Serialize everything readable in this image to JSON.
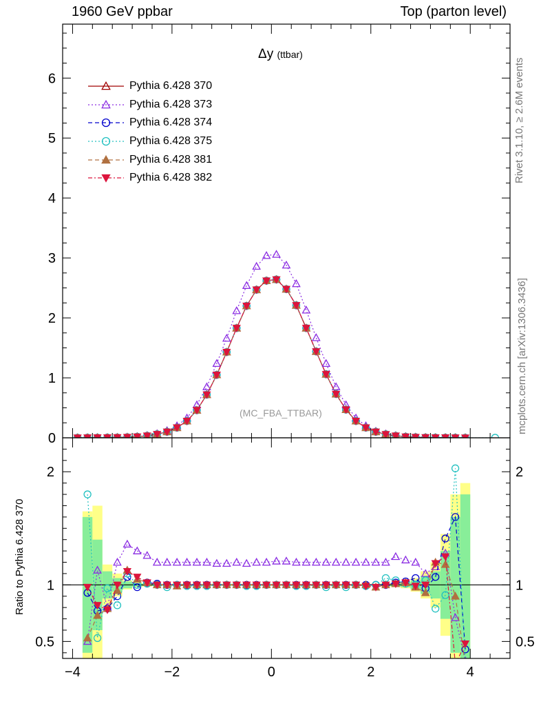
{
  "header": {
    "left": "1960 GeV ppbar",
    "right": "Top (parton level)"
  },
  "side": {
    "rivet": "Rivet 3.1.10, ≥ 2.6M events",
    "mcplots": "mcplots.cern.ch [arXiv:1306.3436]"
  },
  "chart_data": {
    "type": "line",
    "title_main": "Δy",
    "title_sub": "(ttbar)",
    "analysis_label": "(MC_FBA_TTBAR)",
    "xlabel": "",
    "main": {
      "ylabel": "",
      "xlim": [
        -4.2,
        4.8
      ],
      "ylim": [
        0,
        6.9
      ],
      "yticks": [
        0,
        1,
        2,
        3,
        4,
        5,
        6
      ],
      "x": [
        -3.9,
        -3.7,
        -3.5,
        -3.3,
        -3.1,
        -2.9,
        -2.7,
        -2.5,
        -2.3,
        -2.1,
        -1.9,
        -1.7,
        -1.5,
        -1.3,
        -1.1,
        -0.9,
        -0.7,
        -0.5,
        -0.3,
        -0.1,
        0.1,
        0.3,
        0.5,
        0.7,
        0.9,
        1.1,
        1.3,
        1.5,
        1.7,
        1.9,
        2.1,
        2.3,
        2.5,
        2.7,
        2.9,
        3.1,
        3.3,
        3.5,
        3.7,
        3.9,
        4.5
      ],
      "series": [
        {
          "name": "Pythia 6.428 370",
          "color": "#a00000",
          "dash": "",
          "marker": "triangle-open",
          "values": [
            0.001,
            0.002,
            0.003,
            0.004,
            0.006,
            0.01,
            0.018,
            0.034,
            0.06,
            0.1,
            0.17,
            0.28,
            0.46,
            0.72,
            1.05,
            1.43,
            1.83,
            2.2,
            2.47,
            2.62,
            2.64,
            2.48,
            2.21,
            1.83,
            1.44,
            1.06,
            0.73,
            0.47,
            0.28,
            0.17,
            0.1,
            0.058,
            0.033,
            0.018,
            0.01,
            0.006,
            0.004,
            0.003,
            0.002,
            0.001,
            null
          ]
        },
        {
          "name": "Pythia 6.428 373",
          "color": "#8a2be2",
          "dash": "2,3",
          "marker": "triangle-open",
          "values": [
            0.001,
            0.002,
            0.003,
            0.005,
            0.007,
            0.012,
            0.021,
            0.04,
            0.07,
            0.12,
            0.2,
            0.33,
            0.55,
            0.85,
            1.24,
            1.66,
            2.12,
            2.54,
            2.86,
            3.04,
            3.06,
            2.88,
            2.57,
            2.13,
            1.67,
            1.24,
            0.85,
            0.55,
            0.33,
            0.2,
            0.11,
            0.066,
            0.038,
            0.021,
            0.012,
            0.007,
            0.004,
            0.003,
            0.002,
            0.001,
            null
          ]
        },
        {
          "name": "Pythia 6.428 374",
          "color": "#0000cd",
          "dash": "6,4",
          "marker": "circle-open",
          "values": [
            0.001,
            0.002,
            0.003,
            0.004,
            0.006,
            0.01,
            0.018,
            0.034,
            0.06,
            0.1,
            0.17,
            0.28,
            0.46,
            0.72,
            1.05,
            1.43,
            1.83,
            2.2,
            2.47,
            2.62,
            2.64,
            2.48,
            2.21,
            1.83,
            1.44,
            1.06,
            0.73,
            0.47,
            0.28,
            0.17,
            0.1,
            0.058,
            0.033,
            0.018,
            0.01,
            0.006,
            0.004,
            0.003,
            0.002,
            0.001,
            null
          ]
        },
        {
          "name": "Pythia 6.428 375",
          "color": "#20c0c0",
          "dash": "2,3",
          "marker": "circle-open",
          "values": [
            0.001,
            0.002,
            0.003,
            0.004,
            0.005,
            0.01,
            0.018,
            0.034,
            0.06,
            0.1,
            0.17,
            0.28,
            0.46,
            0.72,
            1.05,
            1.43,
            1.83,
            2.2,
            2.47,
            2.62,
            2.64,
            2.48,
            2.21,
            1.83,
            1.44,
            1.06,
            0.73,
            0.47,
            0.28,
            0.17,
            0.1,
            0.058,
            0.033,
            0.018,
            0.01,
            0.006,
            0.004,
            0.003,
            0.002,
            0.001,
            0.001
          ]
        },
        {
          "name": "Pythia 6.428 381",
          "color": "#b07040",
          "dash": "6,4",
          "marker": "triangle-filled",
          "values": [
            0.001,
            0.002,
            0.003,
            0.004,
            0.006,
            0.01,
            0.018,
            0.034,
            0.06,
            0.1,
            0.17,
            0.28,
            0.46,
            0.72,
            1.05,
            1.43,
            1.83,
            2.2,
            2.47,
            2.62,
            2.64,
            2.48,
            2.21,
            1.83,
            1.44,
            1.06,
            0.73,
            0.47,
            0.28,
            0.17,
            0.1,
            0.058,
            0.033,
            0.018,
            0.01,
            0.006,
            0.004,
            0.003,
            0.002,
            0.001,
            null
          ]
        },
        {
          "name": "Pythia 6.428 382",
          "color": "#dc143c",
          "dash": "6,3,2,3",
          "marker": "triangle-down-filled",
          "values": [
            0.001,
            0.002,
            0.003,
            0.004,
            0.006,
            0.01,
            0.018,
            0.034,
            0.06,
            0.1,
            0.17,
            0.28,
            0.46,
            0.72,
            1.05,
            1.43,
            1.83,
            2.2,
            2.47,
            2.62,
            2.64,
            2.48,
            2.21,
            1.83,
            1.44,
            1.06,
            0.73,
            0.47,
            0.28,
            0.17,
            0.1,
            0.058,
            0.033,
            0.018,
            0.01,
            0.006,
            0.004,
            0.003,
            0.002,
            0.001,
            null
          ]
        }
      ]
    },
    "ratio": {
      "ylabel": "Ratio to Pythia 6.428 370",
      "ylim": [
        0.35,
        2.3
      ],
      "yticks": [
        0.5,
        1,
        2
      ],
      "x": [
        -3.7,
        -3.5,
        -3.3,
        -3.1,
        -2.9,
        -2.7,
        -2.5,
        -2.3,
        -2.1,
        -1.9,
        -1.7,
        -1.5,
        -1.3,
        -1.1,
        -0.9,
        -0.7,
        -0.5,
        -0.3,
        -0.1,
        0.1,
        0.3,
        0.5,
        0.7,
        0.9,
        1.1,
        1.3,
        1.5,
        1.7,
        1.9,
        2.1,
        2.3,
        2.5,
        2.7,
        2.9,
        3.1,
        3.3,
        3.5,
        3.7,
        3.9
      ],
      "band_yellow_halfwidth": [
        0.65,
        0.7,
        0.18,
        0.1,
        0.04,
        0.02,
        0.015,
        0.01,
        0.01,
        0.01,
        0.01,
        0.01,
        0.01,
        0.01,
        0.01,
        0.01,
        0.01,
        0.01,
        0.01,
        0.01,
        0.01,
        0.01,
        0.01,
        0.01,
        0.01,
        0.01,
        0.01,
        0.01,
        0.01,
        0.01,
        0.015,
        0.02,
        0.03,
        0.06,
        0.12,
        0.2,
        0.45,
        0.8,
        0.9
      ],
      "band_green_halfwidth": [
        0.6,
        0.4,
        0.12,
        0.06,
        0.03,
        0.015,
        0.01,
        0.007,
        0.005,
        0.005,
        0.005,
        0.005,
        0.005,
        0.005,
        0.005,
        0.005,
        0.005,
        0.005,
        0.005,
        0.005,
        0.005,
        0.005,
        0.005,
        0.005,
        0.005,
        0.005,
        0.005,
        0.005,
        0.005,
        0.005,
        0.01,
        0.015,
        0.02,
        0.04,
        0.08,
        0.12,
        0.3,
        0.6,
        0.8
      ],
      "series": [
        {
          "name": "Pythia 6.428 373",
          "values": [
            0.5,
            1.13,
            0.8,
            1.2,
            1.36,
            1.3,
            1.26,
            1.2,
            1.2,
            1.2,
            1.2,
            1.2,
            1.2,
            1.19,
            1.19,
            1.2,
            1.19,
            1.2,
            1.2,
            1.21,
            1.21,
            1.2,
            1.2,
            1.2,
            1.2,
            1.2,
            1.2,
            1.2,
            1.2,
            1.2,
            1.2,
            1.25,
            1.22,
            1.2,
            1.1,
            1.16,
            1.28,
            0.71,
            0.33
          ]
        },
        {
          "name": "Pythia 6.428 374",
          "values": [
            0.93,
            0.77,
            0.79,
            0.9,
            1.07,
            0.98,
            1.02,
            1.01,
            1.0,
            1.0,
            1.0,
            1.0,
            1.0,
            1.0,
            1.0,
            1.0,
            1.0,
            1.0,
            1.0,
            1.0,
            1.0,
            1.0,
            1.0,
            1.0,
            1.0,
            1.0,
            1.0,
            1.0,
            1.0,
            1.0,
            1.0,
            1.02,
            1.03,
            1.06,
            0.97,
            1.07,
            1.41,
            1.6,
            0.43
          ]
        },
        {
          "name": "Pythia 6.428 375",
          "values": [
            1.8,
            0.53,
            0.97,
            0.82,
            1.1,
            1.0,
            1.01,
            1.0,
            0.98,
            1.0,
            0.99,
            0.99,
            0.99,
            1.0,
            1.0,
            1.0,
            0.99,
            0.99,
            1.0,
            1.0,
            1.0,
            0.99,
            0.99,
            1.0,
            0.98,
            1.0,
            0.98,
            1.0,
            0.99,
            1.0,
            1.06,
            1.04,
            1.01,
            1.0,
            1.04,
            0.79,
            0.91,
            2.03,
            0.3
          ]
        },
        {
          "name": "Pythia 6.428 381",
          "values": [
            0.53,
            0.73,
            0.79,
            0.95,
            1.13,
            1.05,
            1.02,
            1.0,
            1.0,
            0.99,
            1.0,
            1.0,
            1.0,
            1.0,
            1.0,
            1.0,
            1.0,
            1.0,
            1.0,
            1.0,
            1.0,
            1.0,
            1.0,
            1.0,
            1.0,
            1.0,
            1.0,
            1.0,
            1.0,
            0.98,
            1.0,
            1.01,
            1.02,
            0.98,
            0.93,
            1.2,
            1.18,
            0.9,
            0.3
          ]
        },
        {
          "name": "Pythia 6.428 382",
          "values": [
            0.98,
            0.82,
            0.78,
            1.0,
            1.12,
            1.07,
            1.02,
            1.0,
            1.0,
            1.0,
            1.0,
            1.0,
            1.0,
            1.0,
            1.0,
            1.0,
            1.0,
            1.0,
            1.0,
            1.0,
            1.0,
            1.0,
            1.0,
            1.0,
            1.0,
            1.0,
            1.0,
            1.0,
            0.99,
            0.98,
            1.0,
            1.01,
            1.02,
            0.99,
            1.0,
            1.19,
            1.25,
            0.3,
            0.48
          ]
        }
      ]
    },
    "xticks": [
      -4,
      -2,
      0,
      2,
      4
    ]
  }
}
